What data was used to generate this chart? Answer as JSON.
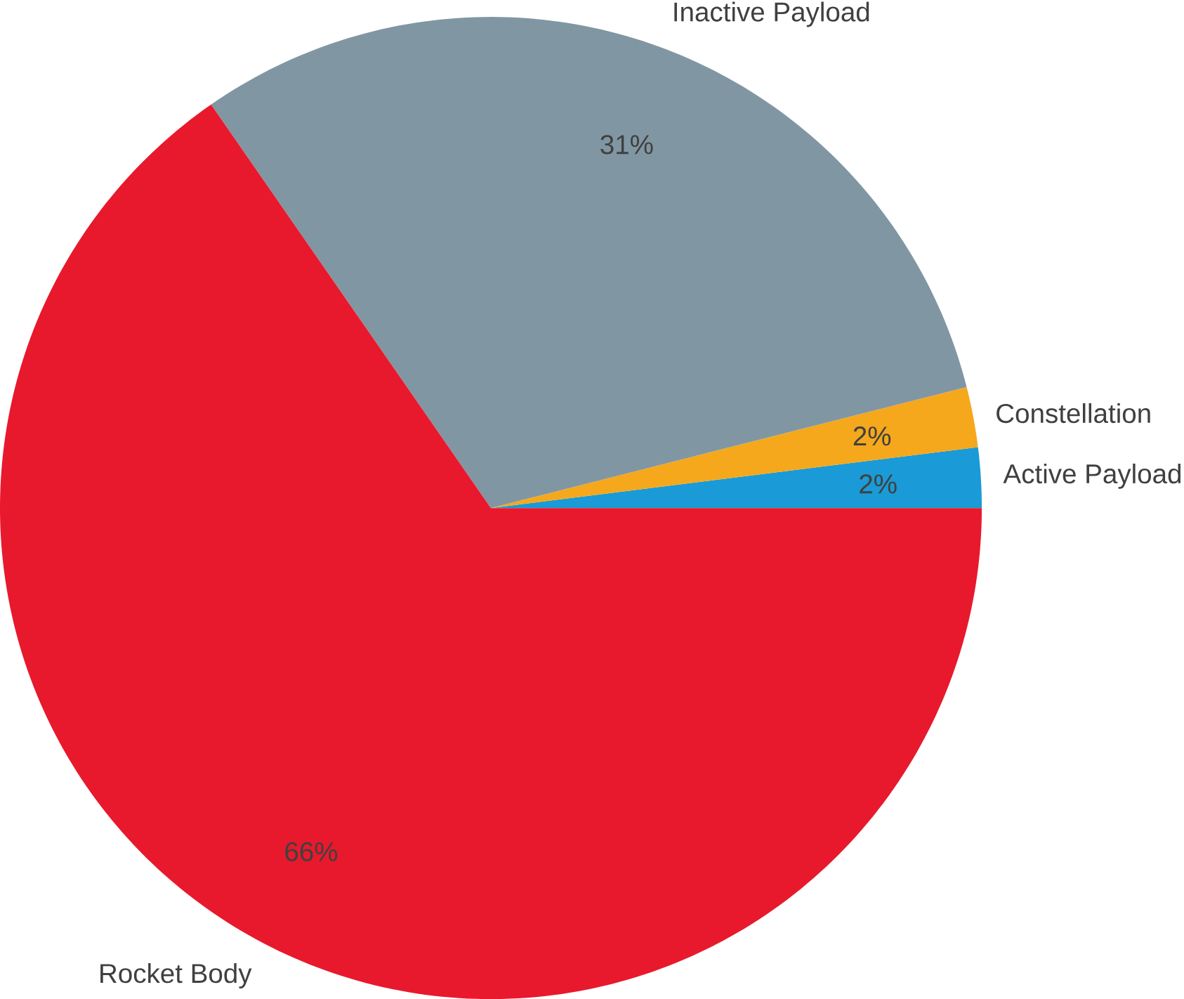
{
  "chart_data": {
    "type": "pie",
    "categories": [
      "Active Payload",
      "Constellation",
      "Inactive Payload",
      "Rocket Body"
    ],
    "values": [
      2,
      2,
      31,
      66
    ],
    "colors": [
      "#1a9ad6",
      "#f5a81c",
      "#8196a3",
      "#e8192c"
    ],
    "value_labels": [
      "2%",
      "2%",
      "31%",
      "66%"
    ]
  }
}
